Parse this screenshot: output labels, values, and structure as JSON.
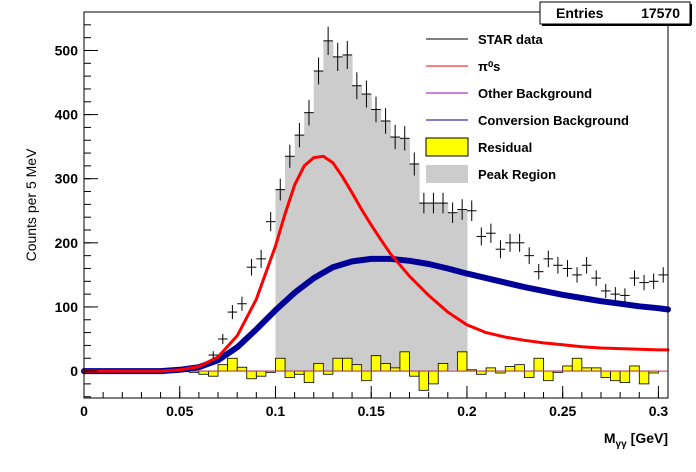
{
  "chart_data": {
    "type": "histogram",
    "xlabel": "M",
    "xlabel_sub": "γγ",
    "xlabel_unit": "[GeV]",
    "ylabel": "Counts per 5 MeV",
    "xlim": [
      0,
      0.305
    ],
    "ylim": [
      -42,
      560
    ],
    "x_ticks": [
      "0",
      "0.05",
      "0.1",
      "0.15",
      "0.2",
      "0.25",
      "0.3"
    ],
    "x_tick_values": [
      0,
      0.05,
      0.1,
      0.15,
      0.2,
      0.25,
      0.3
    ],
    "y_ticks": [
      "0",
      "100",
      "200",
      "300",
      "400",
      "500"
    ],
    "y_tick_values": [
      0,
      100,
      200,
      300,
      400,
      500
    ],
    "stats_box": {
      "label": "Entries",
      "value": "17570"
    },
    "colors": {
      "data": "#000000",
      "pi0": "#ff0000",
      "other": "#9900cc",
      "conversion": "#000099",
      "residual_fill": "#ffff00",
      "peak_fill": "#cccccc"
    },
    "peak_region": [
      0.1,
      0.2
    ],
    "bin_width": 0.005,
    "legend": [
      {
        "label": "STAR data",
        "style": "line",
        "color": "#000000"
      },
      {
        "label": "π⁰s",
        "style": "line",
        "color": "#ff0000"
      },
      {
        "label": "Other Background",
        "style": "line",
        "color": "#9900cc"
      },
      {
        "label": "Conversion Background",
        "style": "line",
        "color": "#000099"
      },
      {
        "label": "Residual",
        "style": "box",
        "color": "#ffff00"
      },
      {
        "label": "Peak Region",
        "style": "box",
        "color": "#cccccc"
      }
    ],
    "series": [
      {
        "name": "STAR data",
        "x": [
          0.0675,
          0.0725,
          0.0775,
          0.0825,
          0.0875,
          0.0925,
          0.0975,
          0.1025,
          0.1075,
          0.1125,
          0.1175,
          0.1225,
          0.1275,
          0.1325,
          0.1375,
          0.1425,
          0.1475,
          0.1525,
          0.1575,
          0.1625,
          0.1675,
          0.1725,
          0.1775,
          0.1825,
          0.1875,
          0.1925,
          0.1975,
          0.2025,
          0.2075,
          0.2125,
          0.2175,
          0.2225,
          0.2275,
          0.2325,
          0.2375,
          0.2425,
          0.2475,
          0.2525,
          0.2575,
          0.2625,
          0.2675,
          0.2725,
          0.2775,
          0.2825,
          0.2875,
          0.2925,
          0.2975,
          0.3025
        ],
        "y": [
          25,
          50,
          92,
          105,
          162,
          175,
          233,
          283,
          335,
          368,
          403,
          468,
          515,
          490,
          493,
          445,
          432,
          408,
          390,
          365,
          363,
          323,
          262,
          262,
          262,
          247,
          252,
          250,
          210,
          215,
          190,
          200,
          200,
          180,
          155,
          175,
          165,
          160,
          150,
          165,
          145,
          125,
          120,
          118,
          145,
          138,
          140,
          150
        ],
        "yerr": [
          6,
          8,
          11,
          11,
          13,
          14,
          15,
          17,
          18,
          19,
          20,
          21,
          22,
          22,
          22,
          21,
          21,
          20,
          20,
          19,
          19,
          18,
          16,
          16,
          16,
          16,
          16,
          16,
          14,
          15,
          14,
          14,
          14,
          13,
          12,
          13,
          13,
          13,
          12,
          13,
          12,
          11,
          11,
          11,
          12,
          12,
          12,
          12
        ]
      },
      {
        "name": "π⁰s",
        "x": [
          0,
          0.04,
          0.05,
          0.06,
          0.07,
          0.08,
          0.09,
          0.1,
          0.105,
          0.11,
          0.115,
          0.12,
          0.125,
          0.13,
          0.135,
          0.14,
          0.145,
          0.15,
          0.155,
          0.16,
          0.17,
          0.18,
          0.19,
          0.2,
          0.21,
          0.22,
          0.23,
          0.24,
          0.25,
          0.26,
          0.27,
          0.28,
          0.29,
          0.3,
          0.305
        ],
        "y": [
          0,
          0,
          2,
          7,
          22,
          55,
          112,
          195,
          245,
          290,
          320,
          333,
          335,
          325,
          303,
          278,
          252,
          228,
          205,
          183,
          148,
          118,
          92,
          72,
          60,
          53,
          48,
          44,
          41,
          38,
          36,
          35,
          34,
          33,
          33
        ]
      },
      {
        "name": "Conversion Background",
        "x": [
          0,
          0.04,
          0.05,
          0.06,
          0.07,
          0.08,
          0.09,
          0.1,
          0.11,
          0.12,
          0.13,
          0.14,
          0.15,
          0.16,
          0.17,
          0.18,
          0.19,
          0.2,
          0.21,
          0.22,
          0.23,
          0.24,
          0.25,
          0.26,
          0.27,
          0.28,
          0.29,
          0.3,
          0.305
        ],
        "y": [
          0,
          0,
          2,
          6,
          17,
          37,
          65,
          95,
          122,
          145,
          162,
          171,
          175,
          175,
          172,
          167,
          160,
          152,
          145,
          138,
          131,
          125,
          119,
          114,
          109,
          105,
          101,
          98,
          96
        ]
      },
      {
        "name": "Residual",
        "x": [
          0.0475,
          0.0525,
          0.0575,
          0.0625,
          0.0675,
          0.0725,
          0.0775,
          0.0825,
          0.0875,
          0.0925,
          0.0975,
          0.1025,
          0.1075,
          0.1125,
          0.1175,
          0.1225,
          0.1275,
          0.1325,
          0.1375,
          0.1425,
          0.1475,
          0.1525,
          0.1575,
          0.1625,
          0.1675,
          0.1725,
          0.1775,
          0.1825,
          0.1875,
          0.1925,
          0.1975,
          0.2025,
          0.2075,
          0.2125,
          0.2175,
          0.2225,
          0.2275,
          0.2325,
          0.2375,
          0.2425,
          0.2475,
          0.2525,
          0.2575,
          0.2625,
          0.2675,
          0.2725,
          0.2775,
          0.2825,
          0.2875,
          0.2925,
          0.2975,
          0.3025
        ],
        "y": [
          0,
          -1,
          -2,
          -5,
          -8,
          10,
          20,
          6,
          -12,
          -8,
          -2,
          20,
          -10,
          -5,
          -18,
          12,
          -5,
          20,
          20,
          10,
          -15,
          24,
          12,
          5,
          30,
          -8,
          -30,
          -20,
          12,
          0,
          30,
          2,
          -5,
          5,
          -3,
          7,
          10,
          -10,
          20,
          -15,
          -2,
          8,
          20,
          5,
          5,
          -10,
          -15,
          -18,
          8,
          -20,
          -3,
          0
        ]
      }
    ]
  }
}
